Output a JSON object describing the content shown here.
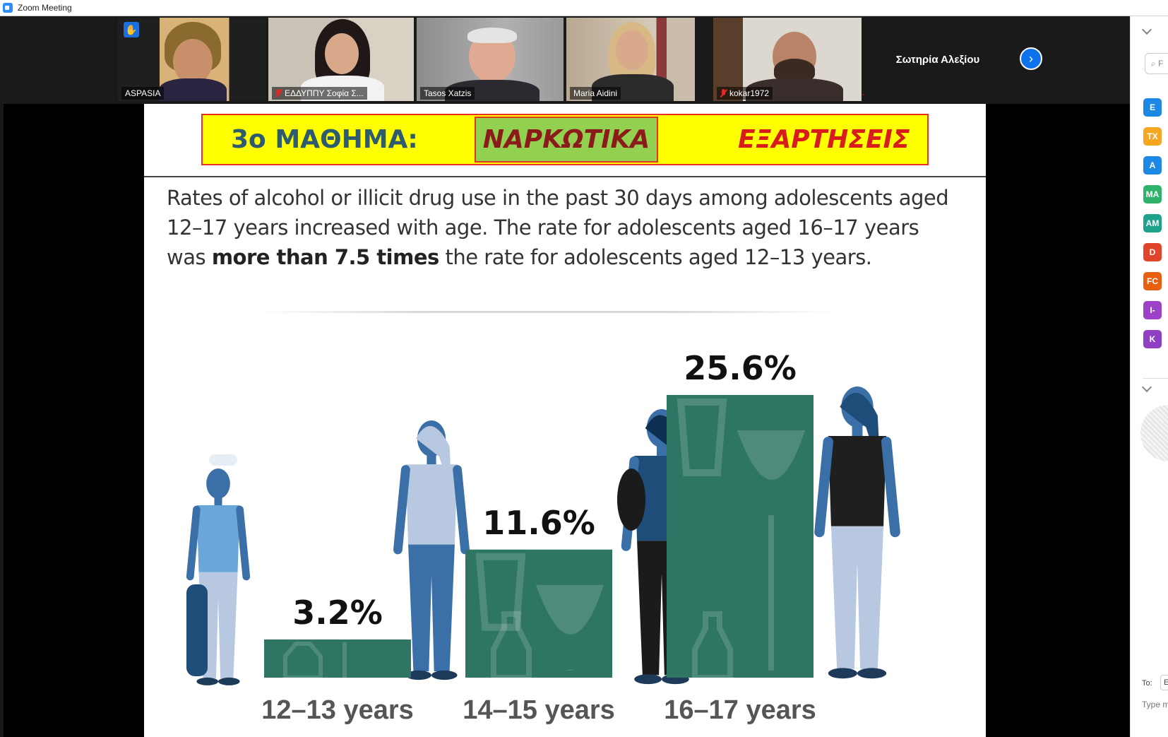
{
  "window": {
    "title": "Zoom Meeting"
  },
  "participants": [
    {
      "name": "ASPASIA",
      "raised_hand": true,
      "muted": false,
      "active": true
    },
    {
      "name": "ΕΔΔΥΠΠΥ Σοφία Σ...",
      "raised_hand": false,
      "muted": true,
      "active": false
    },
    {
      "name": "Tasos Xatzis",
      "raised_hand": false,
      "muted": false,
      "active": false
    },
    {
      "name": "Maria Aidini",
      "raised_hand": false,
      "muted": false,
      "active": false
    },
    {
      "name": "kokar1972",
      "raised_hand": false,
      "muted": true,
      "active": false
    }
  ],
  "name_only_tile": "Σωτηρία Αλεξίου",
  "slide": {
    "lesson": "3ο ΜΑΘΗΜΑ:",
    "narcotics": "ΝΑΡΚΩΤΙΚΑ",
    "dependencies": "ΕΞΑΡΤΗΣΕΙΣ",
    "text_part1": "Rates of alcohol or illicit drug use in the past 30 days among adolescents aged 12–17 years increased with age. The rate for adolescents aged 16–17 years was ",
    "text_bold": "more than 7.5 times",
    "text_part2": " the rate for adolescents aged 12–13 years."
  },
  "chart_data": {
    "type": "bar",
    "categories": [
      "12–13 years",
      "14–15 years",
      "16–17 years"
    ],
    "values": [
      3.2,
      11.6,
      25.6
    ],
    "value_labels": [
      "3.2%",
      "11.6%",
      "25.6%"
    ],
    "ylim": [
      0,
      25.6
    ],
    "bar_color": "#2e7563",
    "figure_colors": {
      "light": "#6aa7d8",
      "mid": "#3b6fa8",
      "dark": "#1e4d7a",
      "pale": "#b8c8e0"
    }
  },
  "side_panel": {
    "search_placeholder": "F",
    "avatars": [
      {
        "initials": "E",
        "color": "#1e88e5"
      },
      {
        "initials": "TX",
        "color": "#f5a623"
      },
      {
        "initials": "A",
        "color": "#1e88e5"
      },
      {
        "initials": "MA",
        "color": "#2fb36a"
      },
      {
        "initials": "AM",
        "color": "#1fa28b"
      },
      {
        "initials": "D",
        "color": "#e0442a"
      },
      {
        "initials": "FC",
        "color": "#e85f10"
      },
      {
        "initials": "I-",
        "color": "#9b42c8"
      },
      {
        "initials": "K",
        "color": "#8e3fc2"
      }
    ],
    "chat_to_label": "To:",
    "chat_to_value": "E",
    "chat_placeholder": "Type m"
  }
}
